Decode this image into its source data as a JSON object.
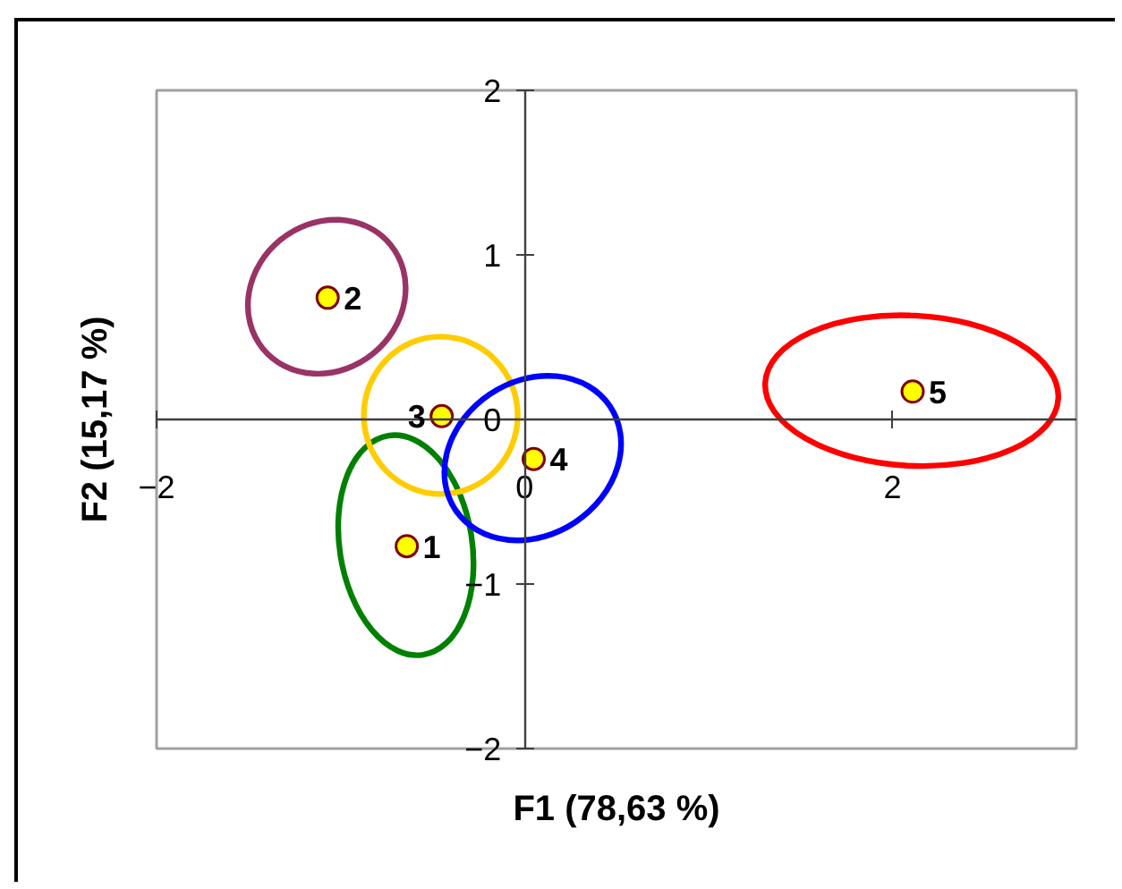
{
  "chart_data": {
    "type": "scatter",
    "xlabel": "F1 (78,63 %)",
    "ylabel": "F2 (15,17 %)",
    "xlim": [
      -2,
      3
    ],
    "ylim": [
      -2,
      2
    ],
    "xticks": [
      -2,
      0,
      2
    ],
    "yticks": [
      -2,
      -1,
      0,
      1,
      2
    ],
    "series": [
      {
        "color": "#ffff00",
        "marker": "circle",
        "x": [
          -0.64,
          -1.07,
          -0.45,
          0.05,
          2.11
        ],
        "values": [
          -0.77,
          0.74,
          0.02,
          -0.24,
          0.17
        ]
      }
    ],
    "annotations": [
      {
        "text": "1",
        "x": -0.64,
        "y": -0.77
      },
      {
        "text": "2",
        "x": -1.07,
        "y": 0.74
      },
      {
        "text": "3",
        "x": -0.45,
        "y": 0.02
      },
      {
        "text": "4",
        "x": 0.05,
        "y": -0.24
      },
      {
        "text": "5",
        "x": 2.11,
        "y": 0.17
      }
    ]
  }
}
